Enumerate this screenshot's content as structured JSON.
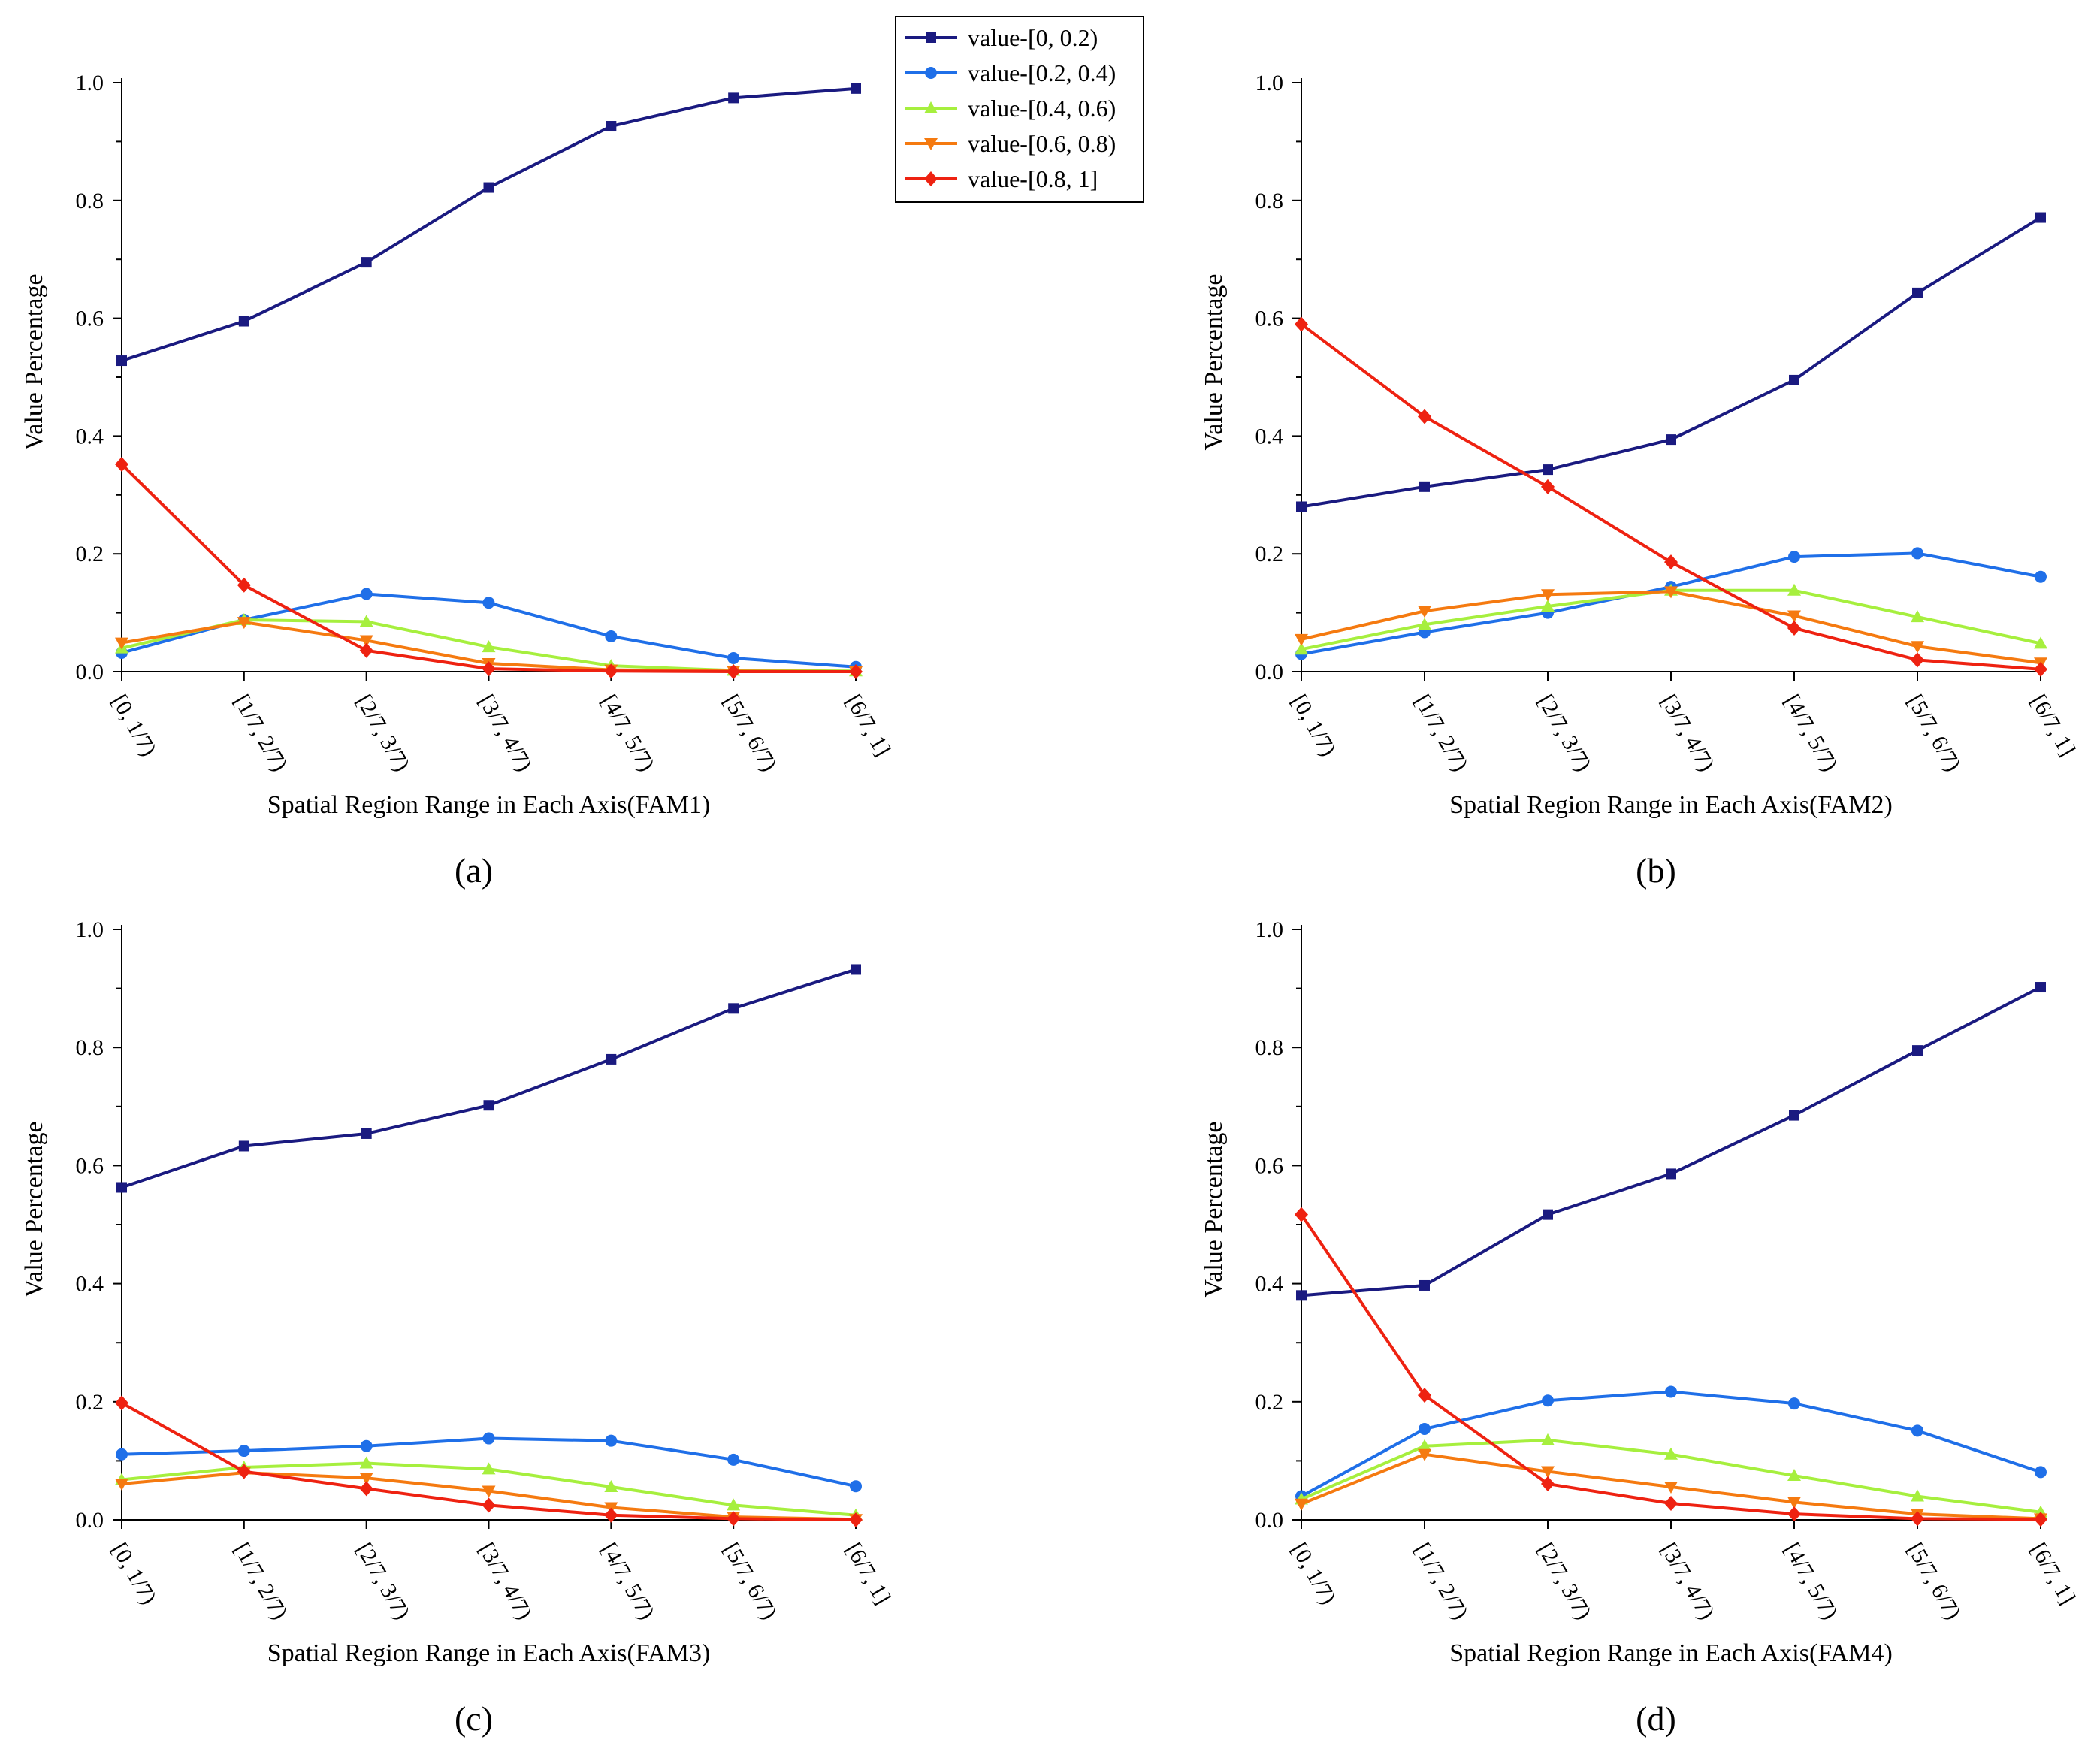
{
  "chart_data": [
    {
      "type": "line",
      "panel_label": "(a)",
      "xlabel": "Spatial Region Range in Each Axis(FAM1)",
      "ylabel": "Value Percentage",
      "ylim": [
        0,
        1.0
      ],
      "yticks": [
        "0.0",
        "0.2",
        "0.4",
        "0.6",
        "0.8",
        "1.0"
      ],
      "categories": [
        "[0, 1/7)",
        "[1/7, 2/7)",
        "[2/7, 3/7)",
        "[3/7, 4/7)",
        "[4/7, 5/7)",
        "[5/7, 6/7)",
        "[6/7, 1]"
      ],
      "series": [
        {
          "name": "value-[0, 0.2)",
          "values": [
            0.528,
            0.595,
            0.695,
            0.822,
            0.926,
            0.974,
            0.99
          ]
        },
        {
          "name": "value-[0.2, 0.4)",
          "values": [
            0.032,
            0.088,
            0.132,
            0.117,
            0.06,
            0.023,
            0.008
          ]
        },
        {
          "name": "value-[0.4, 0.6)",
          "values": [
            0.04,
            0.088,
            0.085,
            0.042,
            0.01,
            0.002,
            0.001
          ]
        },
        {
          "name": "value-[0.6, 0.8)",
          "values": [
            0.049,
            0.084,
            0.053,
            0.014,
            0.003,
            0.001,
            0.0
          ]
        },
        {
          "name": "value-[0.8, 1]",
          "values": [
            0.352,
            0.147,
            0.036,
            0.005,
            0.001,
            0.0,
            0.0
          ]
        }
      ]
    },
    {
      "type": "line",
      "panel_label": "(b)",
      "xlabel": "Spatial Region Range in Each Axis(FAM2)",
      "ylabel": "Value Percentage",
      "ylim": [
        0,
        1.0
      ],
      "yticks": [
        "0.0",
        "0.2",
        "0.4",
        "0.6",
        "0.8",
        "1.0"
      ],
      "categories": [
        "[0, 1/7)",
        "[1/7, 2/7)",
        "[2/7, 3/7)",
        "[3/7, 4/7)",
        "[4/7, 5/7)",
        "[5/7, 6/7)",
        "[6/7, 1]"
      ],
      "series": [
        {
          "name": "value-[0, 0.2)",
          "values": [
            0.28,
            0.314,
            0.343,
            0.394,
            0.495,
            0.643,
            0.771
          ]
        },
        {
          "name": "value-[0.2, 0.4)",
          "values": [
            0.03,
            0.067,
            0.1,
            0.144,
            0.195,
            0.201,
            0.161
          ]
        },
        {
          "name": "value-[0.4, 0.6)",
          "values": [
            0.038,
            0.08,
            0.111,
            0.138,
            0.138,
            0.093,
            0.048
          ]
        },
        {
          "name": "value-[0.6, 0.8)",
          "values": [
            0.055,
            0.103,
            0.131,
            0.136,
            0.095,
            0.043,
            0.015
          ]
        },
        {
          "name": "value-[0.8, 1]",
          "values": [
            0.59,
            0.433,
            0.314,
            0.186,
            0.074,
            0.02,
            0.004
          ]
        }
      ]
    },
    {
      "type": "line",
      "panel_label": "(c)",
      "xlabel": "Spatial Region Range in Each Axis(FAM3)",
      "ylabel": "Value Percentage",
      "ylim": [
        0,
        1.0
      ],
      "yticks": [
        "0.0",
        "0.2",
        "0.4",
        "0.6",
        "0.8",
        "1.0"
      ],
      "categories": [
        "[0, 1/7)",
        "[1/7, 2/7)",
        "[2/7, 3/7)",
        "[3/7, 4/7)",
        "[4/7, 5/7)",
        "[5/7, 6/7)",
        "[6/7, 1]"
      ],
      "series": [
        {
          "name": "value-[0, 0.2)",
          "values": [
            0.563,
            0.633,
            0.654,
            0.702,
            0.78,
            0.866,
            0.932
          ]
        },
        {
          "name": "value-[0.2, 0.4)",
          "values": [
            0.111,
            0.117,
            0.125,
            0.138,
            0.134,
            0.102,
            0.057
          ]
        },
        {
          "name": "value-[0.4, 0.6)",
          "values": [
            0.068,
            0.089,
            0.096,
            0.086,
            0.056,
            0.025,
            0.008
          ]
        },
        {
          "name": "value-[0.6, 0.8)",
          "values": [
            0.061,
            0.08,
            0.071,
            0.049,
            0.021,
            0.005,
            0.001
          ]
        },
        {
          "name": "value-[0.8, 1]",
          "values": [
            0.198,
            0.082,
            0.053,
            0.025,
            0.008,
            0.002,
            0.0
          ]
        }
      ]
    },
    {
      "type": "line",
      "panel_label": "(d)",
      "xlabel": "Spatial Region Range in Each Axis(FAM4)",
      "ylabel": "Value Percentage",
      "ylim": [
        0,
        1.0
      ],
      "yticks": [
        "0.0",
        "0.2",
        "0.4",
        "0.6",
        "0.8",
        "1.0"
      ],
      "categories": [
        "[0, 1/7)",
        "[1/7, 2/7)",
        "[2/7, 3/7)",
        "[3/7, 4/7)",
        "[4/7, 5/7)",
        "[5/7, 6/7)",
        "[6/7, 1]"
      ],
      "series": [
        {
          "name": "value-[0, 0.2)",
          "values": [
            0.38,
            0.397,
            0.517,
            0.586,
            0.685,
            0.795,
            0.902
          ]
        },
        {
          "name": "value-[0.2, 0.4)",
          "values": [
            0.04,
            0.154,
            0.202,
            0.217,
            0.197,
            0.151,
            0.081
          ]
        },
        {
          "name": "value-[0.4, 0.6)",
          "values": [
            0.035,
            0.125,
            0.135,
            0.111,
            0.075,
            0.04,
            0.013
          ]
        },
        {
          "name": "value-[0.6, 0.8)",
          "values": [
            0.027,
            0.111,
            0.082,
            0.056,
            0.03,
            0.01,
            0.002
          ]
        },
        {
          "name": "value-[0.8, 1]",
          "values": [
            0.517,
            0.211,
            0.061,
            0.028,
            0.01,
            0.002,
            0.001
          ]
        }
      ]
    }
  ],
  "legend": {
    "placement": "top-center",
    "items": [
      {
        "label": "value-[0, 0.2)",
        "color": "#1a1a80",
        "marker": "square"
      },
      {
        "label": "value-[0.2, 0.4)",
        "color": "#1f6fe8",
        "marker": "circle"
      },
      {
        "label": "value-[0.4, 0.6)",
        "color": "#a6ef3e",
        "marker": "triangle-up"
      },
      {
        "label": "value-[0.6, 0.8)",
        "color": "#f57a10",
        "marker": "triangle-down"
      },
      {
        "label": "value-[0.8, 1]",
        "color": "#ee2211",
        "marker": "diamond"
      }
    ]
  }
}
